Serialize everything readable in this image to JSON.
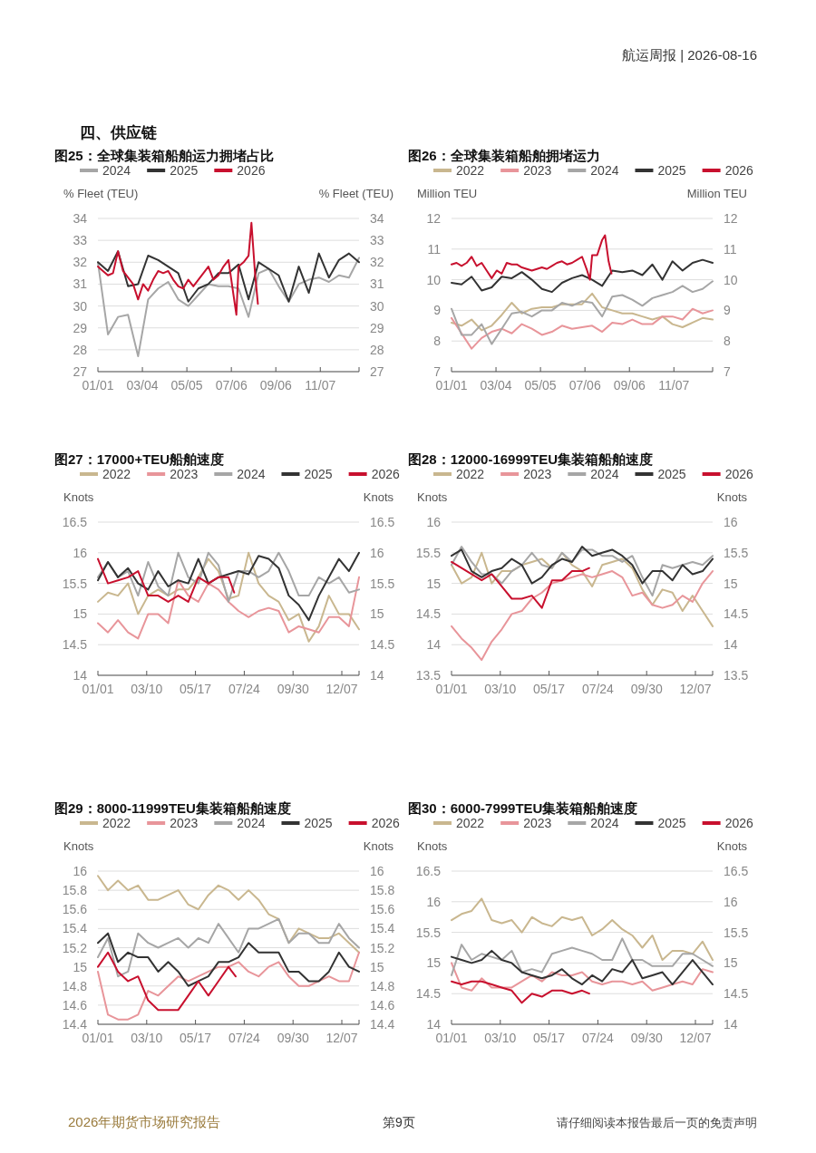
{
  "chart_data": [
    {
      "type": "line",
      "title": "图25：全球集装箱船舶运力拥堵占比",
      "ylabel": "% Fleet (TEU)",
      "y2label": "% Fleet (TEU)",
      "legend": "top",
      "grid": "y",
      "line_style": "solid",
      "marker": "none",
      "annotations": [
        "航运周报 | 2026-08-16",
        "四、供应链"
      ],
      "xlim": [
        "--01-01",
        "--12-31"
      ],
      "xticks": [
        {
          "value": "--01-01",
          "label": "01/01"
        },
        {
          "value": "--03-04",
          "label": "03/04"
        },
        {
          "value": "--05-05",
          "label": "05/05"
        },
        {
          "value": "--07-06",
          "label": "07/06"
        },
        {
          "value": "--09-06",
          "label": "09/06"
        },
        {
          "value": "--11-07",
          "label": "11/07"
        },
        {
          "value": "--12-31",
          "label": null
        }
      ],
      "ylim": [
        27,
        34
      ],
      "yticks": [
        27,
        28,
        29,
        30,
        31,
        32,
        33,
        34
      ],
      "y2lim": [
        27,
        34
      ],
      "y2ticks": [
        27,
        28,
        29,
        30,
        31,
        32,
        33,
        34
      ],
      "x": [
        "--01-01",
        "--01-15",
        "--01-29",
        "--02-12",
        "--02-26",
        "--03-12",
        "--03-26",
        "--04-09",
        "--04-23",
        "--05-07",
        "--05-21",
        "--06-04",
        "--06-18",
        "--07-02",
        "--07-16",
        "--07-30",
        "--08-13",
        "--08-27",
        "--09-10",
        "--09-24",
        "--10-08",
        "--10-22",
        "--11-05",
        "--11-19",
        "--12-03",
        "--12-17",
        "--12-31"
      ],
      "series": [
        {
          "name": "2024",
          "color": "#a6a6a6",
          "values": [
            32.0,
            28.7,
            29.5,
            29.6,
            27.7,
            30.3,
            30.8,
            31.1,
            30.3,
            30.0,
            30.5,
            31.0,
            30.9,
            30.9,
            30.8,
            29.5,
            31.5,
            31.7,
            30.9,
            30.2,
            31.0,
            31.2,
            31.3,
            31.1,
            31.4,
            31.3,
            32.2
          ]
        },
        {
          "name": "2025",
          "color": "#333333",
          "values": [
            32.0,
            31.6,
            32.5,
            30.9,
            31.0,
            32.3,
            32.1,
            31.8,
            31.5,
            30.2,
            30.8,
            31.0,
            31.5,
            31.5,
            31.9,
            30.3,
            32.0,
            31.7,
            31.4,
            30.2,
            31.8,
            30.6,
            32.4,
            31.3,
            32.1,
            32.4,
            32.0
          ]
        },
        {
          "name": "2026",
          "color": "#c8102e",
          "x": [
            "--01-01",
            "--01-08",
            "--01-15",
            "--01-22",
            "--01-29",
            "--02-05",
            "--02-12",
            "--02-19",
            "--02-26",
            "--03-05",
            "--03-12",
            "--03-19",
            "--03-26",
            "--04-02",
            "--04-09",
            "--04-16",
            "--04-23",
            "--04-30",
            "--05-07",
            "--05-14",
            "--05-21",
            "--05-28",
            "--06-04",
            "--06-11",
            "--06-18",
            "--06-25",
            "--07-02",
            "--07-09",
            "--07-13",
            "--07-16",
            "--07-23",
            "--07-30",
            "--08-03",
            "--08-08",
            "--08-12"
          ],
          "values": [
            31.8,
            31.6,
            31.4,
            31.5,
            32.5,
            31.6,
            31.3,
            31.0,
            30.3,
            31.0,
            30.7,
            31.2,
            31.6,
            31.5,
            31.6,
            31.2,
            30.9,
            30.8,
            31.2,
            30.9,
            31.2,
            31.5,
            31.8,
            31.2,
            31.4,
            31.8,
            32.1,
            30.5,
            29.6,
            31.8,
            32.0,
            32.3,
            33.8,
            31.5,
            30.1
          ]
        }
      ]
    },
    {
      "type": "line",
      "title": "图26：全球集装箱船舶拥堵运力",
      "ylabel": "Million TEU",
      "y2label": "Million TEU",
      "legend": "top",
      "grid": "y",
      "line_style": "solid",
      "marker": "none",
      "xlim": [
        "--01-01",
        "--12-31"
      ],
      "xticks": [
        {
          "value": "--01-01",
          "label": "01/01"
        },
        {
          "value": "--03-04",
          "label": "03/04"
        },
        {
          "value": "--05-05",
          "label": "05/05"
        },
        {
          "value": "--07-06",
          "label": "07/06"
        },
        {
          "value": "--09-06",
          "label": "09/06"
        },
        {
          "value": "--11-07",
          "label": "11/07"
        },
        {
          "value": "--12-31",
          "label": null
        }
      ],
      "ylim": [
        7,
        12
      ],
      "yticks": [
        7,
        8,
        9,
        10,
        11,
        12
      ],
      "y2lim": [
        7,
        12
      ],
      "y2ticks": [
        7,
        8,
        9,
        10,
        11,
        12
      ],
      "x": [
        "--01-01",
        "--01-15",
        "--01-29",
        "--02-12",
        "--02-26",
        "--03-12",
        "--03-26",
        "--04-09",
        "--04-23",
        "--05-07",
        "--05-21",
        "--06-04",
        "--06-18",
        "--07-02",
        "--07-16",
        "--07-30",
        "--08-13",
        "--08-27",
        "--09-10",
        "--09-24",
        "--10-08",
        "--10-22",
        "--11-05",
        "--11-19",
        "--12-03",
        "--12-17",
        "--12-31"
      ],
      "series": [
        {
          "name": "2022",
          "color": "#c9b78f",
          "values": [
            8.6,
            8.5,
            8.7,
            8.35,
            8.5,
            8.85,
            9.25,
            8.9,
            9.05,
            9.1,
            9.1,
            9.2,
            9.2,
            9.2,
            9.55,
            9.1,
            9.0,
            8.9,
            8.9,
            8.8,
            8.7,
            8.8,
            8.55,
            8.45,
            8.6,
            8.75,
            8.7
          ]
        },
        {
          "name": "2023",
          "color": "#e8959a",
          "values": [
            8.75,
            8.25,
            7.75,
            8.1,
            8.3,
            8.4,
            8.25,
            8.55,
            8.4,
            8.2,
            8.3,
            8.5,
            8.4,
            8.45,
            8.5,
            8.3,
            8.6,
            8.55,
            8.7,
            8.55,
            8.55,
            8.8,
            8.8,
            8.7,
            9.05,
            8.9,
            9.0
          ]
        },
        {
          "name": "2024",
          "color": "#a6a6a6",
          "values": [
            9.05,
            8.2,
            8.2,
            8.55,
            7.9,
            8.4,
            8.9,
            8.95,
            8.8,
            9.0,
            9.0,
            9.25,
            9.15,
            9.3,
            9.25,
            8.8,
            9.45,
            9.5,
            9.35,
            9.15,
            9.4,
            9.5,
            9.6,
            9.8,
            9.6,
            9.7,
            9.95
          ]
        },
        {
          "name": "2025",
          "color": "#333333",
          "values": [
            9.9,
            9.85,
            10.1,
            9.65,
            9.75,
            10.1,
            10.05,
            10.25,
            10.0,
            9.7,
            9.6,
            9.9,
            10.05,
            10.15,
            10.0,
            9.8,
            10.3,
            10.25,
            10.3,
            10.15,
            10.5,
            10.0,
            10.6,
            10.3,
            10.55,
            10.65,
            10.55
          ]
        },
        {
          "name": "2026",
          "color": "#c8102e",
          "x": [
            "--01-01",
            "--01-08",
            "--01-15",
            "--01-22",
            "--01-29",
            "--02-05",
            "--02-12",
            "--02-19",
            "--02-26",
            "--03-05",
            "--03-12",
            "--03-19",
            "--03-26",
            "--04-02",
            "--04-09",
            "--04-16",
            "--04-23",
            "--04-30",
            "--05-07",
            "--05-14",
            "--05-21",
            "--05-28",
            "--06-04",
            "--06-11",
            "--06-18",
            "--06-25",
            "--07-02",
            "--07-09",
            "--07-13",
            "--07-16",
            "--07-23",
            "--07-30",
            "--08-03",
            "--08-08",
            "--08-12"
          ],
          "values": [
            10.5,
            10.55,
            10.45,
            10.55,
            10.75,
            10.45,
            10.55,
            10.3,
            10.05,
            10.3,
            10.2,
            10.55,
            10.5,
            10.5,
            10.4,
            10.35,
            10.3,
            10.35,
            10.4,
            10.35,
            10.45,
            10.55,
            10.6,
            10.5,
            10.55,
            10.65,
            10.75,
            10.3,
            10.0,
            10.8,
            10.8,
            11.3,
            11.45,
            10.6,
            10.2
          ]
        }
      ]
    },
    {
      "type": "line",
      "title": "图27：17000+TEU船舶速度",
      "ylabel": "Knots",
      "y2label": "Knots",
      "legend": "top",
      "grid": "y",
      "line_style": "solid",
      "marker": "none",
      "xlim": [
        "--01-01",
        "--12-31"
      ],
      "xticks": [
        {
          "value": "--01-01",
          "label": "01/01"
        },
        {
          "value": "--03-10",
          "label": "03/10"
        },
        {
          "value": "--05-17",
          "label": "05/17"
        },
        {
          "value": "--07-24",
          "label": "07/24"
        },
        {
          "value": "--09-30",
          "label": "09/30"
        },
        {
          "value": "--12-07",
          "label": "12/07"
        },
        {
          "value": "--12-31",
          "label": null
        }
      ],
      "ylim": [
        14,
        16.5
      ],
      "yticks": [
        14,
        14.5,
        15,
        15.5,
        16,
        16.5
      ],
      "y2lim": [
        14,
        16.5
      ],
      "y2ticks": [
        14,
        14.5,
        15,
        15.5,
        16,
        16.5
      ],
      "x": [
        "--01-01",
        "--01-15",
        "--01-29",
        "--02-12",
        "--02-26",
        "--03-12",
        "--03-26",
        "--04-09",
        "--04-23",
        "--05-07",
        "--05-21",
        "--06-04",
        "--06-18",
        "--07-02",
        "--07-16",
        "--07-30",
        "--08-13",
        "--08-27",
        "--09-10",
        "--09-24",
        "--10-08",
        "--10-22",
        "--11-05",
        "--11-19",
        "--12-03",
        "--12-17",
        "--12-31"
      ],
      "series": [
        {
          "name": "2022",
          "color": "#c9b78f",
          "values": [
            15.2,
            15.35,
            15.3,
            15.5,
            15.0,
            15.3,
            15.4,
            15.3,
            15.4,
            15.4,
            15.6,
            15.9,
            15.7,
            15.25,
            15.3,
            16.0,
            15.5,
            15.3,
            15.2,
            14.9,
            15.0,
            14.55,
            14.8,
            15.3,
            15.0,
            15.0,
            14.75
          ]
        },
        {
          "name": "2023",
          "color": "#e8959a",
          "values": [
            14.85,
            14.7,
            14.9,
            14.7,
            14.6,
            15.0,
            15.0,
            14.85,
            15.55,
            15.3,
            15.2,
            15.5,
            15.4,
            15.2,
            15.05,
            14.95,
            15.05,
            15.1,
            15.05,
            14.7,
            14.8,
            14.75,
            14.7,
            14.95,
            14.95,
            14.8,
            15.6
          ]
        },
        {
          "name": "2024",
          "color": "#a6a6a6",
          "values": [
            15.6,
            15.85,
            15.6,
            15.7,
            15.3,
            15.85,
            15.45,
            15.3,
            16.0,
            15.6,
            15.5,
            16.0,
            15.8,
            15.2,
            15.7,
            15.7,
            15.6,
            15.7,
            16.0,
            15.7,
            15.3,
            15.3,
            15.6,
            15.5,
            15.6,
            15.35,
            15.4
          ]
        },
        {
          "name": "2025",
          "color": "#333333",
          "values": [
            15.55,
            15.85,
            15.6,
            15.75,
            15.5,
            15.4,
            15.7,
            15.45,
            15.55,
            15.5,
            15.9,
            15.5,
            15.6,
            15.65,
            15.7,
            15.65,
            15.95,
            15.9,
            15.75,
            15.3,
            15.15,
            14.9,
            15.3,
            15.6,
            15.9,
            15.7,
            16.0
          ]
        },
        {
          "name": "2026",
          "color": "#c8102e",
          "x": [
            "--01-01",
            "--01-15",
            "--01-29",
            "--02-12",
            "--02-26",
            "--03-12",
            "--03-26",
            "--04-09",
            "--04-23",
            "--05-07",
            "--05-21",
            "--06-04",
            "--06-18",
            "--07-02",
            "--07-10"
          ],
          "values": [
            15.9,
            15.5,
            15.55,
            15.6,
            15.7,
            15.3,
            15.3,
            15.2,
            15.3,
            15.2,
            15.6,
            15.5,
            15.6,
            15.6,
            15.35
          ]
        }
      ]
    },
    {
      "type": "line",
      "title": "图28：12000-16999TEU集装箱船舶速度",
      "ylabel": "Knots",
      "y2label": "Knots",
      "legend": "top",
      "grid": "y",
      "line_style": "solid",
      "marker": "none",
      "xlim": [
        "--01-01",
        "--12-31"
      ],
      "xticks": [
        {
          "value": "--01-01",
          "label": "01/01"
        },
        {
          "value": "--03-10",
          "label": "03/10"
        },
        {
          "value": "--05-17",
          "label": "05/17"
        },
        {
          "value": "--07-24",
          "label": "07/24"
        },
        {
          "value": "--09-30",
          "label": "09/30"
        },
        {
          "value": "--12-07",
          "label": "12/07"
        },
        {
          "value": "--12-31",
          "label": null
        }
      ],
      "ylim": [
        13.5,
        16
      ],
      "yticks": [
        13.5,
        14,
        14.5,
        15,
        15.5,
        16
      ],
      "y2lim": [
        13.5,
        16
      ],
      "y2ticks": [
        13.5,
        14,
        14.5,
        15,
        15.5,
        16
      ],
      "x": [
        "--01-01",
        "--01-15",
        "--01-29",
        "--02-12",
        "--02-26",
        "--03-12",
        "--03-26",
        "--04-09",
        "--04-23",
        "--05-07",
        "--05-21",
        "--06-04",
        "--06-18",
        "--07-02",
        "--07-16",
        "--07-30",
        "--08-13",
        "--08-27",
        "--09-10",
        "--09-24",
        "--10-08",
        "--10-22",
        "--11-05",
        "--11-19",
        "--12-03",
        "--12-17",
        "--12-31"
      ],
      "series": [
        {
          "name": "2022",
          "color": "#c9b78f",
          "values": [
            15.3,
            15.0,
            15.1,
            15.5,
            15.0,
            15.2,
            15.2,
            15.3,
            15.35,
            15.4,
            15.25,
            15.5,
            15.3,
            15.2,
            14.95,
            15.3,
            15.35,
            15.4,
            15.25,
            14.9,
            14.65,
            14.9,
            14.85,
            14.55,
            14.8,
            14.55,
            14.3
          ]
        },
        {
          "name": "2023",
          "color": "#e8959a",
          "values": [
            14.3,
            14.1,
            13.95,
            13.75,
            14.05,
            14.25,
            14.5,
            14.55,
            14.75,
            14.85,
            15.0,
            15.05,
            15.1,
            15.15,
            15.1,
            15.15,
            15.2,
            15.1,
            14.8,
            14.85,
            14.65,
            14.6,
            14.65,
            14.8,
            14.7,
            15.0,
            15.2
          ]
        },
        {
          "name": "2024",
          "color": "#a6a6a6",
          "values": [
            15.3,
            15.6,
            15.35,
            15.15,
            15.15,
            15.0,
            15.2,
            15.3,
            15.5,
            15.3,
            15.25,
            15.5,
            15.35,
            15.55,
            15.55,
            15.45,
            15.45,
            15.35,
            15.45,
            15.1,
            14.8,
            15.3,
            15.25,
            15.3,
            15.35,
            15.3,
            15.45
          ]
        },
        {
          "name": "2025",
          "color": "#333333",
          "values": [
            15.45,
            15.55,
            15.2,
            15.1,
            15.2,
            15.25,
            15.4,
            15.3,
            15.0,
            15.1,
            15.3,
            15.4,
            15.35,
            15.6,
            15.45,
            15.5,
            15.55,
            15.45,
            15.3,
            15.0,
            15.2,
            15.2,
            15.05,
            15.3,
            15.15,
            15.2,
            15.4
          ]
        },
        {
          "name": "2026",
          "color": "#c8102e",
          "x": [
            "--01-01",
            "--01-15",
            "--01-29",
            "--02-12",
            "--02-26",
            "--03-12",
            "--03-26",
            "--04-09",
            "--04-23",
            "--05-07",
            "--05-21",
            "--06-04",
            "--06-18",
            "--07-02",
            "--07-12"
          ],
          "values": [
            15.35,
            15.25,
            15.15,
            15.05,
            15.15,
            14.95,
            14.75,
            14.75,
            14.8,
            14.6,
            15.05,
            15.05,
            15.2,
            15.2,
            15.25
          ]
        }
      ]
    },
    {
      "type": "line",
      "title": "图29：8000-11999TEU集装箱船舶速度",
      "ylabel": "Knots",
      "y2label": "Knots",
      "legend": "top",
      "grid": "y",
      "line_style": "solid",
      "marker": "none",
      "xlim": [
        "--01-01",
        "--12-31"
      ],
      "xticks": [
        {
          "value": "--01-01",
          "label": "01/01"
        },
        {
          "value": "--03-10",
          "label": "03/10"
        },
        {
          "value": "--05-17",
          "label": "05/17"
        },
        {
          "value": "--07-24",
          "label": "07/24"
        },
        {
          "value": "--09-30",
          "label": "09/30"
        },
        {
          "value": "--12-07",
          "label": "12/07"
        },
        {
          "value": "--12-31",
          "label": null
        }
      ],
      "ylim": [
        14.4,
        16
      ],
      "yticks": [
        14.4,
        14.6,
        14.8,
        15,
        15.2,
        15.4,
        15.6,
        15.8,
        16
      ],
      "y2lim": [
        14.4,
        16
      ],
      "y2ticks": [
        14.4,
        14.6,
        14.8,
        15,
        15.2,
        15.4,
        15.6,
        15.8,
        16
      ],
      "x": [
        "--01-01",
        "--01-15",
        "--01-29",
        "--02-12",
        "--02-26",
        "--03-12",
        "--03-26",
        "--04-09",
        "--04-23",
        "--05-07",
        "--05-21",
        "--06-04",
        "--06-18",
        "--07-02",
        "--07-16",
        "--07-30",
        "--08-13",
        "--08-27",
        "--09-10",
        "--09-24",
        "--10-08",
        "--10-22",
        "--11-05",
        "--11-19",
        "--12-03",
        "--12-17",
        "--12-31"
      ],
      "series": [
        {
          "name": "2022",
          "color": "#c9b78f",
          "values": [
            15.95,
            15.8,
            15.9,
            15.8,
            15.85,
            15.7,
            15.7,
            15.75,
            15.8,
            15.65,
            15.6,
            15.75,
            15.85,
            15.8,
            15.7,
            15.8,
            15.7,
            15.55,
            15.5,
            15.25,
            15.4,
            15.35,
            15.3,
            15.3,
            15.35,
            15.25,
            15.15
          ]
        },
        {
          "name": "2023",
          "color": "#e8959a",
          "values": [
            14.95,
            14.5,
            14.45,
            14.45,
            14.5,
            14.75,
            14.7,
            14.8,
            14.9,
            14.85,
            14.9,
            14.95,
            15.0,
            15.0,
            15.05,
            14.95,
            14.9,
            15.0,
            15.05,
            14.9,
            14.8,
            14.8,
            14.85,
            14.9,
            14.85,
            14.85,
            15.15
          ]
        },
        {
          "name": "2024",
          "color": "#a6a6a6",
          "values": [
            15.1,
            15.3,
            14.9,
            14.95,
            15.35,
            15.25,
            15.2,
            15.25,
            15.3,
            15.2,
            15.3,
            15.25,
            15.45,
            15.3,
            15.15,
            15.4,
            15.4,
            15.45,
            15.5,
            15.25,
            15.35,
            15.35,
            15.25,
            15.25,
            15.45,
            15.3,
            15.2
          ]
        },
        {
          "name": "2025",
          "color": "#333333",
          "values": [
            15.25,
            15.35,
            15.05,
            15.15,
            15.1,
            15.1,
            14.95,
            15.05,
            14.95,
            14.8,
            14.85,
            14.9,
            15.05,
            15.05,
            15.1,
            15.25,
            15.15,
            15.15,
            15.15,
            14.95,
            14.95,
            14.85,
            14.85,
            14.95,
            15.15,
            15.0,
            14.95
          ]
        },
        {
          "name": "2026",
          "color": "#c8102e",
          "x": [
            "--01-01",
            "--01-15",
            "--01-29",
            "--02-12",
            "--02-26",
            "--03-12",
            "--03-26",
            "--04-09",
            "--04-23",
            "--05-07",
            "--05-21",
            "--06-04",
            "--06-18",
            "--07-02",
            "--07-12"
          ],
          "values": [
            15.0,
            15.15,
            14.95,
            14.85,
            14.9,
            14.65,
            14.55,
            14.55,
            14.55,
            14.7,
            14.85,
            14.7,
            14.85,
            15.0,
            14.9
          ]
        }
      ]
    },
    {
      "type": "line",
      "title": "图30：6000-7999TEU集装箱船舶速度",
      "ylabel": "Knots",
      "y2label": "Knots",
      "legend": "top",
      "grid": "y",
      "line_style": "solid",
      "marker": "none",
      "annotations": [
        "2026年期货市场研究报告",
        "第9页",
        "请仔细阅读本报告最后一页的免责声明"
      ],
      "xlim": [
        "--01-01",
        "--12-31"
      ],
      "xticks": [
        {
          "value": "--01-01",
          "label": "01/01"
        },
        {
          "value": "--03-10",
          "label": "03/10"
        },
        {
          "value": "--05-17",
          "label": "05/17"
        },
        {
          "value": "--07-24",
          "label": "07/24"
        },
        {
          "value": "--09-30",
          "label": "09/30"
        },
        {
          "value": "--12-07",
          "label": "12/07"
        },
        {
          "value": "--12-31",
          "label": null
        }
      ],
      "ylim": [
        14,
        16.5
      ],
      "yticks": [
        14,
        14.5,
        15,
        15.5,
        16,
        16.5
      ],
      "y2lim": [
        14,
        16.5
      ],
      "y2ticks": [
        14,
        14.5,
        15,
        15.5,
        16,
        16.5
      ],
      "x": [
        "--01-01",
        "--01-15",
        "--01-29",
        "--02-12",
        "--02-26",
        "--03-12",
        "--03-26",
        "--04-09",
        "--04-23",
        "--05-07",
        "--05-21",
        "--06-04",
        "--06-18",
        "--07-02",
        "--07-16",
        "--07-30",
        "--08-13",
        "--08-27",
        "--09-10",
        "--09-24",
        "--10-08",
        "--10-22",
        "--11-05",
        "--11-19",
        "--12-03",
        "--12-17",
        "--12-31"
      ],
      "series": [
        {
          "name": "2022",
          "color": "#c9b78f",
          "values": [
            15.7,
            15.8,
            15.85,
            16.05,
            15.7,
            15.65,
            15.7,
            15.5,
            15.75,
            15.65,
            15.6,
            15.75,
            15.7,
            15.75,
            15.45,
            15.55,
            15.7,
            15.55,
            15.45,
            15.25,
            15.45,
            15.05,
            15.2,
            15.2,
            15.15,
            15.35,
            15.05
          ]
        },
        {
          "name": "2023",
          "color": "#e8959a",
          "values": [
            15.0,
            14.6,
            14.55,
            14.75,
            14.6,
            14.6,
            14.6,
            14.7,
            14.8,
            14.7,
            14.85,
            14.8,
            14.8,
            14.85,
            14.7,
            14.65,
            14.7,
            14.7,
            14.65,
            14.7,
            14.55,
            14.6,
            14.65,
            14.7,
            14.65,
            14.9,
            14.85
          ]
        },
        {
          "name": "2024",
          "color": "#a6a6a6",
          "values": [
            14.8,
            15.3,
            15.05,
            15.15,
            15.1,
            15.05,
            15.2,
            14.85,
            14.9,
            14.85,
            15.15,
            15.2,
            15.25,
            15.2,
            15.15,
            15.05,
            15.05,
            15.4,
            15.05,
            15.05,
            14.95,
            14.95,
            14.95,
            15.15,
            15.15,
            15.05,
            14.95
          ]
        },
        {
          "name": "2025",
          "color": "#333333",
          "values": [
            15.1,
            15.05,
            15.0,
            15.05,
            15.2,
            15.05,
            15.0,
            14.85,
            14.8,
            14.75,
            14.8,
            14.9,
            14.75,
            14.65,
            14.8,
            14.7,
            14.9,
            14.85,
            15.05,
            14.75,
            14.8,
            14.85,
            14.65,
            14.85,
            15.05,
            14.85,
            14.65
          ]
        },
        {
          "name": "2026",
          "color": "#c8102e",
          "x": [
            "--01-01",
            "--01-15",
            "--01-29",
            "--02-12",
            "--02-26",
            "--03-12",
            "--03-26",
            "--04-09",
            "--04-23",
            "--05-07",
            "--05-21",
            "--06-04",
            "--06-18",
            "--07-02",
            "--07-12"
          ],
          "values": [
            14.7,
            14.65,
            14.7,
            14.7,
            14.65,
            14.6,
            14.55,
            14.35,
            14.5,
            14.45,
            14.55,
            14.55,
            14.5,
            14.55,
            14.5
          ]
        }
      ]
    }
  ]
}
